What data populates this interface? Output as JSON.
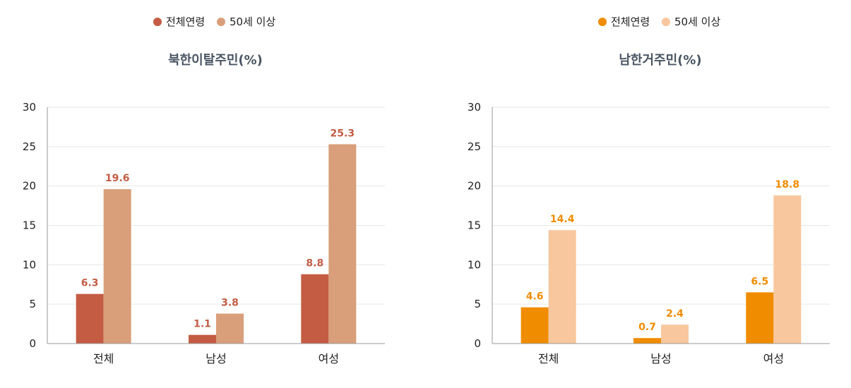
{
  "chart_data": [
    {
      "type": "bar",
      "title": "북한이탈주민(%)",
      "categories": [
        "전체",
        "남성",
        "여성"
      ],
      "series": [
        {
          "name": "전체연령",
          "values": [
            6.3,
            1.1,
            8.8
          ],
          "color": "#c45c44",
          "label_color": "#c45c44"
        },
        {
          "name": "50세 이상",
          "values": [
            19.6,
            3.8,
            25.3
          ],
          "color": "#d99e7a",
          "label_color": "#c45c44"
        }
      ],
      "ylim": [
        0,
        30
      ],
      "yticks": [
        0,
        5,
        10,
        15,
        20,
        25,
        30
      ],
      "grid": true,
      "legend_position": "top-center",
      "xlabel": "",
      "ylabel": ""
    },
    {
      "type": "bar",
      "title": "남한거주민(%)",
      "categories": [
        "전체",
        "남성",
        "여성"
      ],
      "series": [
        {
          "name": "전체연령",
          "values": [
            4.6,
            0.7,
            6.5
          ],
          "color": "#f08c00",
          "label_color": "#f08c00"
        },
        {
          "name": "50세 이상",
          "values": [
            14.4,
            2.4,
            18.8
          ],
          "color": "#f8c79d",
          "label_color": "#f08c00"
        }
      ],
      "ylim": [
        0,
        30
      ],
      "yticks": [
        0,
        5,
        10,
        15,
        20,
        25,
        30
      ],
      "grid": true,
      "legend_position": "top-center",
      "xlabel": "",
      "ylabel": ""
    }
  ]
}
